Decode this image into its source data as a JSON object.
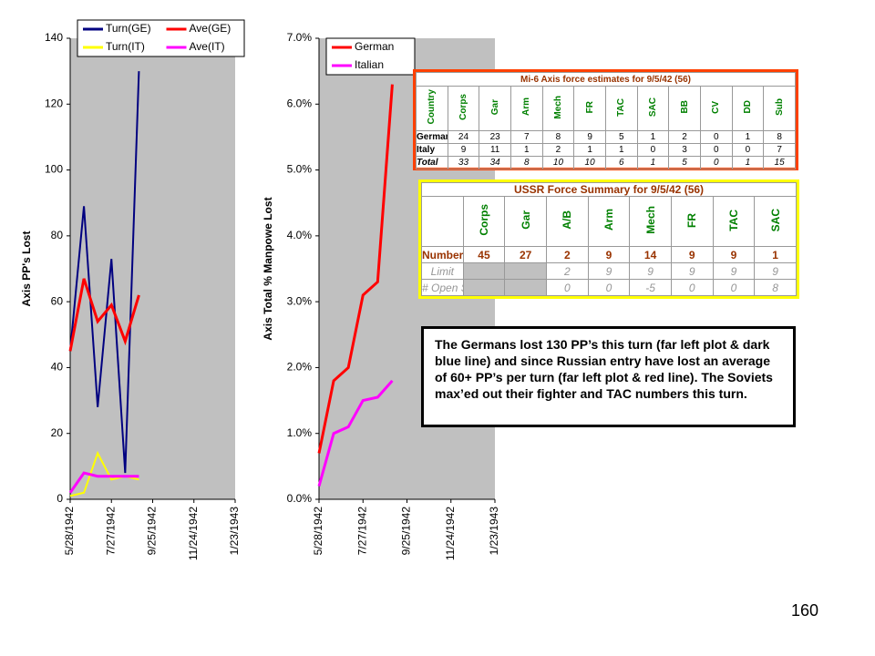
{
  "chart_data": [
    {
      "type": "line",
      "y_label": "Axis PP's Lost",
      "x": [
        "5/28/1942",
        "6/17/1942",
        "7/7/1942",
        "7/27/1942",
        "8/16/1942",
        "9/5/1942"
      ],
      "xlim": [
        "5/28/1942",
        "1/23/1943"
      ],
      "xticks": [
        "5/28/1942",
        "7/27/1942",
        "9/25/1942",
        "11/24/1942",
        "1/23/1943"
      ],
      "ylim": [
        0,
        140
      ],
      "yticks": [
        0,
        20,
        40,
        60,
        80,
        100,
        120,
        140
      ],
      "grid": false,
      "legend": "top",
      "series": [
        {
          "name": "Turn(GE)",
          "color": "#000080",
          "values": [
            45,
            89,
            28,
            73,
            8,
            130
          ]
        },
        {
          "name": "Ave(GE)",
          "color": "#ff0000",
          "values": [
            45,
            67,
            54,
            59,
            48,
            62
          ]
        },
        {
          "name": "Turn(IT)",
          "color": "#ffff00",
          "values": [
            1,
            2,
            14,
            6,
            7,
            6
          ]
        },
        {
          "name": "Ave(IT)",
          "color": "#ff00ff",
          "values": [
            2,
            8,
            7,
            7,
            7,
            7
          ]
        }
      ]
    },
    {
      "type": "line",
      "y_label": "Axis Total % Manpowe Lost",
      "x": [
        "5/28/1942",
        "6/17/1942",
        "7/7/1942",
        "7/27/1942",
        "8/16/1942",
        "9/5/1942"
      ],
      "xlim": [
        "5/28/1942",
        "1/23/1943"
      ],
      "xticks": [
        "5/28/1942",
        "7/27/1942",
        "9/25/1942",
        "11/24/1942",
        "1/23/1943"
      ],
      "ylim": [
        0,
        7
      ],
      "yticks": [
        {
          "value": 0,
          "label": "0.0%"
        },
        {
          "value": 1,
          "label": "1.0%"
        },
        {
          "value": 2,
          "label": "2.0%"
        },
        {
          "value": 3,
          "label": "3.0%"
        },
        {
          "value": 4,
          "label": "4.0%"
        },
        {
          "value": 5,
          "label": "5.0%"
        },
        {
          "value": 6,
          "label": "6.0%"
        },
        {
          "value": 7,
          "label": "7.0%"
        }
      ],
      "grid": false,
      "legend": "top-left",
      "series": [
        {
          "name": "German",
          "color": "#ff0000",
          "values": [
            0.7,
            1.8,
            2.0,
            3.1,
            3.3,
            6.3
          ]
        },
        {
          "name": "Italian",
          "color": "#ff00ff",
          "values": [
            0.2,
            1.0,
            1.1,
            1.5,
            1.55,
            1.8
          ]
        }
      ]
    }
  ],
  "tables": [
    {
      "title": "Mi-6 Axis force estimates for 9/5/42 (56)",
      "columns": [
        "Country",
        "Corps",
        "Gar",
        "Arm",
        "Mech",
        "FR",
        "TAC",
        "SAC",
        "BB",
        "CV",
        "DD",
        "Sub"
      ],
      "rows": [
        [
          "Germany",
          24,
          23,
          7,
          8,
          9,
          5,
          1,
          2,
          0,
          1,
          8
        ],
        [
          "Italy",
          9,
          11,
          1,
          2,
          1,
          1,
          0,
          3,
          0,
          0,
          7
        ],
        [
          "Total",
          33,
          34,
          8,
          10,
          10,
          6,
          1,
          5,
          0,
          1,
          15
        ]
      ]
    },
    {
      "title": "USSR Force Summary for 9/5/42 (56)",
      "columns": [
        null,
        "Corps",
        "Gar",
        "A/B",
        "Arm",
        "Mech",
        "FR",
        "TAC",
        "SAC"
      ],
      "rows": [
        [
          "Number",
          45,
          27,
          2,
          9,
          14,
          9,
          9,
          1
        ],
        [
          "Limit",
          null,
          null,
          2,
          9,
          9,
          9,
          9,
          9
        ],
        [
          "# Open Slots",
          null,
          null,
          0,
          0,
          -5,
          0,
          0,
          8
        ]
      ]
    }
  ],
  "note": "The Germans lost 130 PP’s this turn (far left plot & dark blue line) and since Russian entry have lost an average of 60+ PP’s per turn (far left plot & red line).  The Soviets max’ed out their fighter and TAC numbers this turn.",
  "page_number": "160"
}
